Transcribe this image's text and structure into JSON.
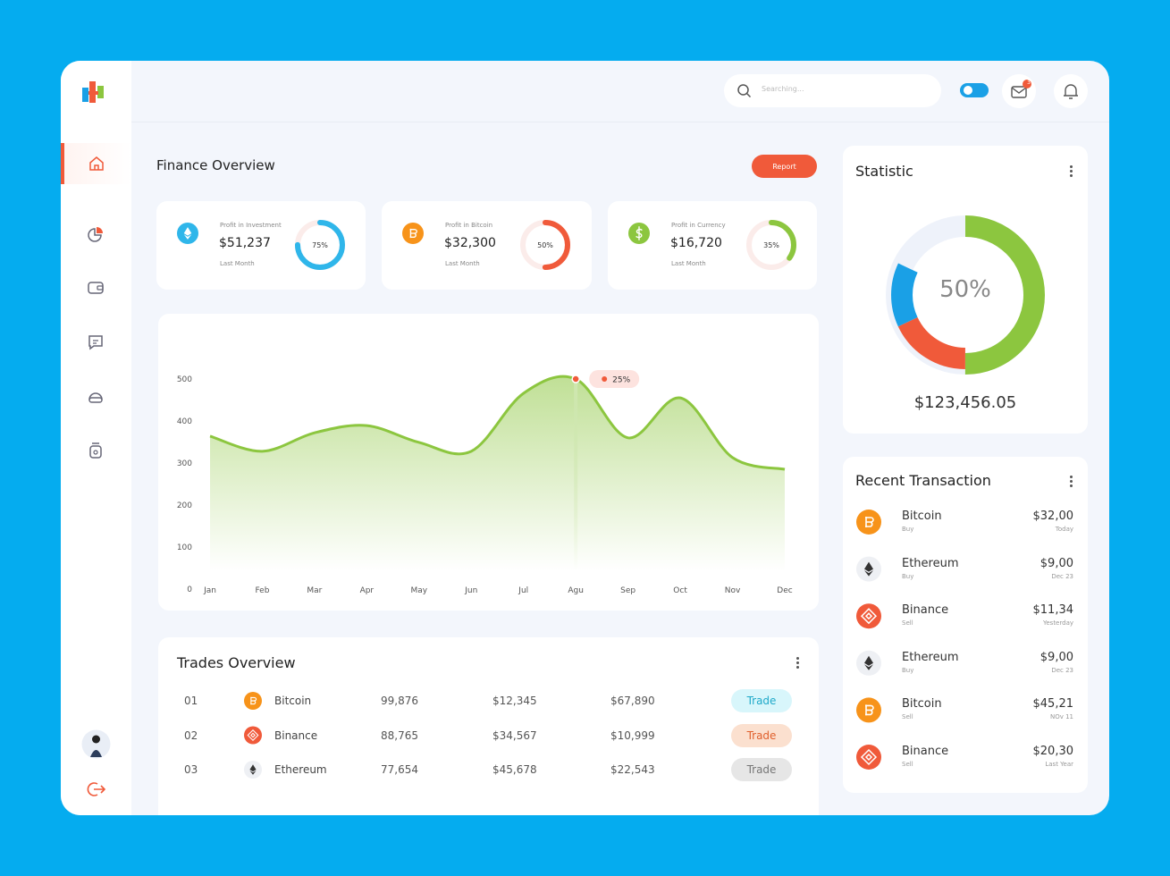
{
  "search": {
    "placeholder": "Searching..."
  },
  "notification_badge": "3",
  "finance": {
    "title": "Finance Overview",
    "report_button": "Report",
    "cards": [
      {
        "label": "Profit in Investment",
        "value": "$51,237",
        "sub": "Last Month",
        "percent": 75,
        "percent_label": "75%",
        "color": "#2fb6ea",
        "icon": "eth"
      },
      {
        "label": "Profit in Bitcoin",
        "value": "$32,300",
        "sub": "Last Month",
        "percent": 50,
        "percent_label": "50%",
        "color": "#f05a3a",
        "icon": "btc"
      },
      {
        "label": "Profit in Currency",
        "value": "$16,720",
        "sub": "Last Month",
        "percent": 35,
        "percent_label": "35%",
        "color": "#8cc63f",
        "icon": "usd"
      }
    ]
  },
  "chart_data": {
    "type": "area",
    "categories": [
      "Jan",
      "Feb",
      "Mar",
      "Apr",
      "May",
      "Jun",
      "Jul",
      "Agu",
      "Sep",
      "Oct",
      "Nov",
      "Dec"
    ],
    "values": [
      364,
      328,
      372,
      389,
      349,
      328,
      466,
      500,
      360,
      455,
      313,
      285
    ],
    "color": "#8cc63f",
    "ylim": [
      0,
      500
    ],
    "yticks": [
      0,
      100,
      200,
      300,
      400,
      500
    ],
    "grid": false,
    "annotation": {
      "x": "Agu",
      "label": "25%"
    }
  },
  "trades": {
    "title": "Trades Overview",
    "rows": [
      {
        "no": "01",
        "coin": "Bitcoin",
        "icon": "btc",
        "volume": "99,876",
        "price": "$12,345",
        "total": "$67,890",
        "action": "Trade",
        "action_color": "#d8f6fb",
        "action_text_color": "#1fa9c9"
      },
      {
        "no": "02",
        "coin": "Binance",
        "icon": "bnb",
        "volume": "88,765",
        "price": "$34,567",
        "total": "$10,999",
        "action": "Trade",
        "action_color": "#fbe0cf",
        "action_text_color": "#e0602d"
      },
      {
        "no": "03",
        "coin": "Ethereum",
        "icon": "eth",
        "volume": "77,654",
        "price": "$45,678",
        "total": "$22,543",
        "action": "Trade",
        "action_color": "#e6e6e6",
        "action_text_color": "#777777"
      }
    ]
  },
  "statistic": {
    "title": "Statistic",
    "center_label": "50%",
    "total": "$123,456.05",
    "segments": [
      {
        "value": 50,
        "color": "#8cc63f"
      },
      {
        "value": 18,
        "color": "#f05a3a"
      },
      {
        "value": 14,
        "color": "#1aa0e6"
      }
    ]
  },
  "transactions": {
    "title": "Recent Transaction",
    "items": [
      {
        "name": "Bitcoin",
        "type": "Buy",
        "amount": "$32,00",
        "date": "Today",
        "icon": "btc"
      },
      {
        "name": "Ethereum",
        "type": "Buy",
        "amount": "$9,00",
        "date": "Dec 23",
        "icon": "eth"
      },
      {
        "name": "Binance",
        "type": "Sell",
        "amount": "$11,34",
        "date": "Yesterday",
        "icon": "bnb"
      },
      {
        "name": "Ethereum",
        "type": "Buy",
        "amount": "$9,00",
        "date": "Dec 23",
        "icon": "eth"
      },
      {
        "name": "Bitcoin",
        "type": "Sell",
        "amount": "$45,21",
        "date": "NOv 11",
        "icon": "btc"
      },
      {
        "name": "Binance",
        "type": "Sell",
        "amount": "$20,30",
        "date": "Last Year",
        "icon": "bnb"
      }
    ]
  }
}
